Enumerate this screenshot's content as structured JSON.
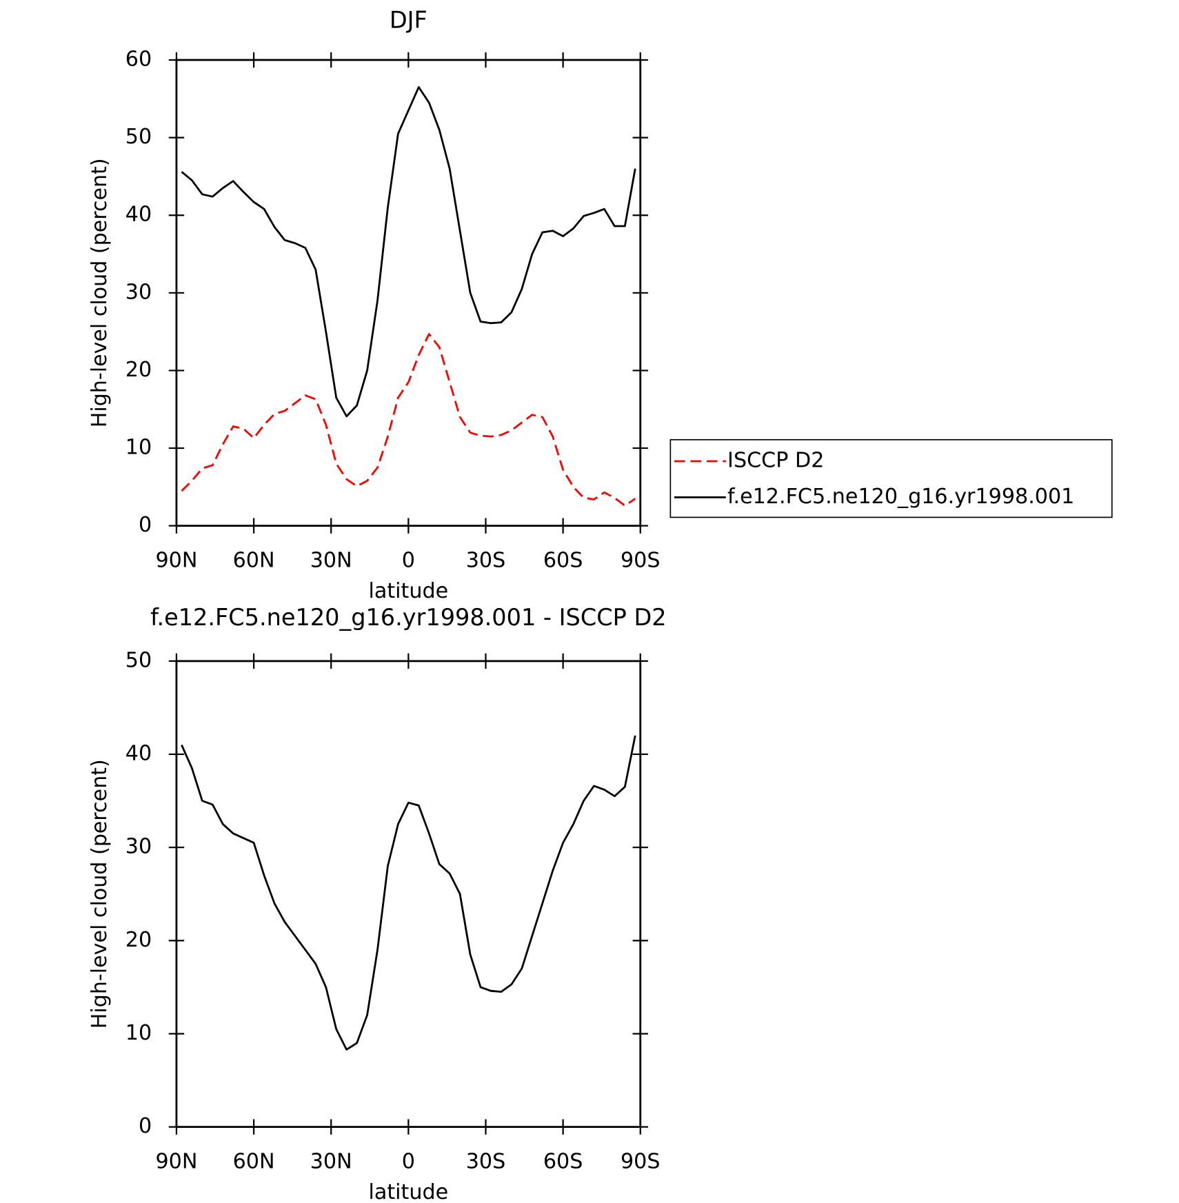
{
  "chart_data": [
    {
      "type": "line",
      "title": "DJF",
      "xlabel": "latitude",
      "ylabel": "High-level cloud (percent)",
      "x": [
        88,
        84,
        80,
        76,
        72,
        68,
        64,
        60,
        56,
        52,
        48,
        44,
        40,
        36,
        32,
        28,
        24,
        20,
        16,
        12,
        8,
        4,
        0,
        -4,
        -8,
        -12,
        -16,
        -20,
        -24,
        -28,
        -32,
        -36,
        -40,
        -44,
        -48,
        -52,
        -56,
        -60,
        -64,
        -68,
        -72,
        -76,
        -80,
        -84,
        -88
      ],
      "xlim": [
        90,
        -90
      ],
      "xticks": [
        {
          "value": 90,
          "label": "90N"
        },
        {
          "value": 60,
          "label": "60N"
        },
        {
          "value": 30,
          "label": "30N"
        },
        0,
        {
          "value": -30,
          "label": "30S"
        },
        {
          "value": -60,
          "label": "60S"
        },
        {
          "value": -90,
          "label": "90S"
        }
      ],
      "ylim": [
        0,
        60
      ],
      "yticks": [
        0,
        10,
        20,
        30,
        40,
        50,
        60
      ],
      "legend": "right",
      "series": [
        {
          "name": "ISCCP D2",
          "color": "#ff0000",
          "linestyle": "dashed",
          "values": [
            4.5,
            5.8,
            7.4,
            7.8,
            10.5,
            12.8,
            12.5,
            11.3,
            13,
            14.4,
            14.8,
            15.8,
            16.8,
            16.3,
            13,
            8,
            6,
            5.1,
            5.8,
            7.5,
            11.5,
            16.5,
            18.5,
            22,
            24.7,
            23,
            18.5,
            14,
            12,
            11.6,
            11.5,
            11.7,
            12.3,
            13.3,
            14.3,
            14,
            11.5,
            7.2,
            5,
            3.6,
            3.4,
            4.3,
            3.6,
            2.6,
            3.5
          ]
        },
        {
          "name": "f.e12.FC5.ne120_g16.yr1998.001",
          "color": "#000000",
          "linestyle": "solid",
          "values": [
            45.6,
            44.5,
            42.7,
            42.4,
            43.5,
            44.4,
            43,
            41.7,
            40.8,
            38.5,
            36.8,
            36.4,
            35.8,
            33,
            25,
            16.5,
            14.1,
            15.5,
            20,
            29,
            41,
            50.5,
            53.5,
            56.5,
            54.5,
            51,
            46,
            38,
            30,
            26.3,
            26.1,
            26.2,
            27.5,
            30.5,
            35,
            37.8,
            38,
            37.3,
            38.3,
            39.9,
            40.3,
            40.8,
            38.6,
            38.6,
            46
          ]
        }
      ]
    },
    {
      "type": "line",
      "title": "f.e12.FC5.ne120_g16.yr1998.001 - ISCCP D2",
      "xlabel": "latitude",
      "ylabel": "High-level cloud (percent)",
      "x": [
        88,
        84,
        80,
        76,
        72,
        68,
        64,
        60,
        56,
        52,
        48,
        44,
        40,
        36,
        32,
        28,
        24,
        20,
        16,
        12,
        8,
        4,
        0,
        -4,
        -8,
        -12,
        -16,
        -20,
        -24,
        -28,
        -32,
        -36,
        -40,
        -44,
        -48,
        -52,
        -56,
        -60,
        -64,
        -68,
        -72,
        -76,
        -80,
        -84,
        -88
      ],
      "xlim": [
        90,
        -90
      ],
      "xticks": [
        {
          "value": 90,
          "label": "90N"
        },
        {
          "value": 60,
          "label": "60N"
        },
        {
          "value": 30,
          "label": "30N"
        },
        0,
        {
          "value": -30,
          "label": "30S"
        },
        {
          "value": -60,
          "label": "60S"
        },
        {
          "value": -90,
          "label": "90S"
        }
      ],
      "ylim": [
        0,
        50
      ],
      "yticks": [
        0,
        10,
        20,
        30,
        40,
        50
      ],
      "series": [
        {
          "color": "#000000",
          "linestyle": "solid",
          "values": [
            41,
            38.5,
            35,
            34.6,
            32.5,
            31.5,
            31,
            30.5,
            27,
            24,
            22,
            20.5,
            19,
            17.5,
            15,
            10.5,
            8.3,
            9,
            12,
            19,
            28,
            32.5,
            34.8,
            34.5,
            31.5,
            28.2,
            27.2,
            25,
            18.5,
            15,
            14.6,
            14.5,
            15.3,
            17,
            20.5,
            24,
            27.5,
            30.5,
            32.5,
            35,
            36.6,
            36.2,
            35.5,
            36.5,
            42
          ]
        }
      ]
    }
  ]
}
